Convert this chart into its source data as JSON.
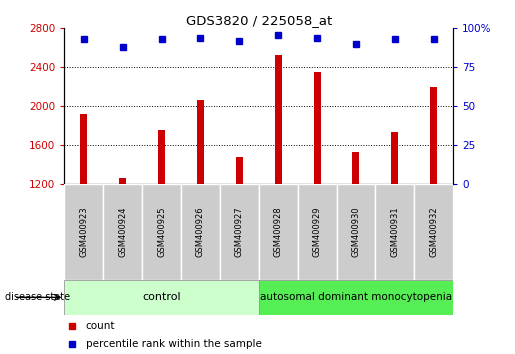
{
  "title": "GDS3820 / 225058_at",
  "samples": [
    "GSM400923",
    "GSM400924",
    "GSM400925",
    "GSM400926",
    "GSM400927",
    "GSM400928",
    "GSM400929",
    "GSM400930",
    "GSM400931",
    "GSM400932"
  ],
  "counts": [
    1920,
    1260,
    1760,
    2060,
    1480,
    2530,
    2350,
    1530,
    1740,
    2200
  ],
  "percentile_ranks": [
    93,
    88,
    93,
    94,
    92,
    96,
    94,
    90,
    93,
    93
  ],
  "ylim_left": [
    1200,
    2800
  ],
  "ylim_right": [
    0,
    100
  ],
  "yticks_left": [
    1200,
    1600,
    2000,
    2400,
    2800
  ],
  "yticks_right": [
    0,
    25,
    50,
    75,
    100
  ],
  "bar_color": "#cc0000",
  "dot_color": "#0000cc",
  "control_label": "control",
  "disease_label": "autosomal dominant monocytopenia",
  "disease_state_label": "disease state",
  "legend_count_label": "count",
  "legend_percentile_label": "percentile rank within the sample",
  "control_bg": "#ccffcc",
  "disease_bg": "#55ee55",
  "sample_bg": "#cccccc",
  "bar_width": 0.18,
  "n_control": 5,
  "n_disease": 5
}
